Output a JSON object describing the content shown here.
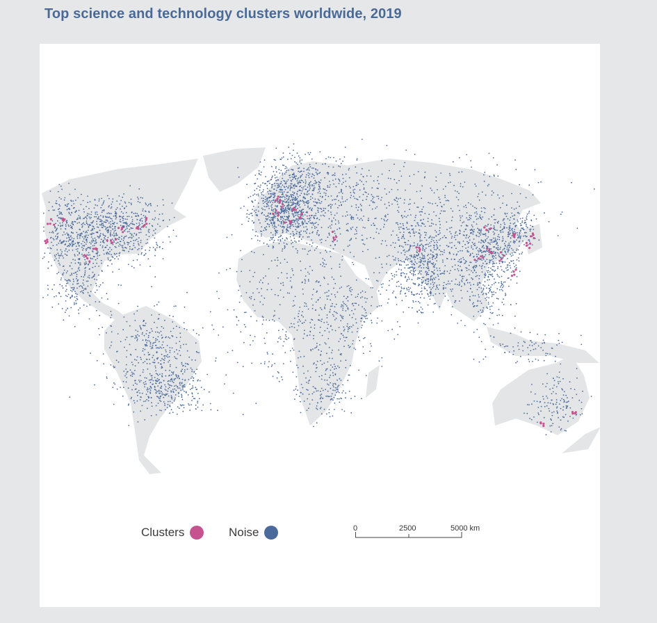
{
  "title": "Top science and technology clusters worldwide, 2019",
  "legend": {
    "clusters": {
      "label": "Clusters",
      "color": "#c4538f"
    },
    "noise": {
      "label": "Noise",
      "color": "#4a6a9b"
    }
  },
  "scale_bar": {
    "ticks": [
      "0",
      "2500",
      "5000 km"
    ]
  },
  "colors": {
    "land": "#e4e5e7",
    "background": "#e6e7e9",
    "panel": "#ffffff"
  }
}
